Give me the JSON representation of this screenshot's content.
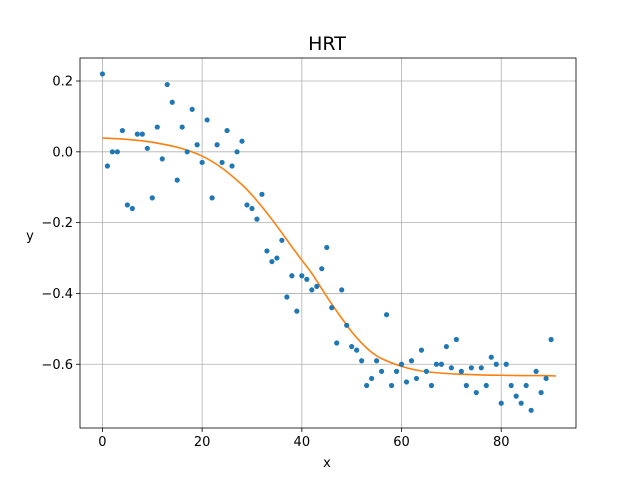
{
  "chart_data": {
    "type": "scatter",
    "title": "HRT",
    "xlabel": "x",
    "ylabel": "y",
    "xlim": [
      -4.5,
      95
    ],
    "ylim": [
      -0.78,
      0.265
    ],
    "xticks": [
      0,
      20,
      40,
      60,
      80
    ],
    "xtick_labels": [
      "0",
      "20",
      "40",
      "60",
      "80"
    ],
    "yticks": [
      0.2,
      0.0,
      -0.2,
      -0.4,
      -0.6
    ],
    "ytick_labels": [
      "0.2",
      "0.0",
      "−0.2",
      "−0.4",
      "−0.6"
    ],
    "grid": true,
    "colors": {
      "points": "#1f77b4",
      "fit": "#ff7f0e",
      "grid": "#b0b0b0"
    },
    "series": [
      {
        "kind": "points",
        "x": [
          0,
          1,
          2,
          3,
          4,
          5,
          6,
          7,
          8,
          9,
          10,
          11,
          12,
          13,
          14,
          15,
          16,
          17,
          18,
          19,
          20,
          21,
          22,
          23,
          24,
          25,
          26,
          27,
          28,
          29,
          30,
          31,
          32,
          33,
          34,
          35,
          36,
          37,
          38,
          39,
          40,
          41,
          42,
          43,
          44,
          45,
          46,
          47,
          48,
          49,
          50,
          51,
          52,
          53,
          54,
          55,
          56,
          57,
          58,
          59,
          60,
          61,
          62,
          63,
          64,
          65,
          66,
          67,
          68,
          69,
          70,
          71,
          72,
          73,
          74,
          75,
          76,
          77,
          78,
          79,
          80,
          81,
          82,
          83,
          84,
          85,
          86,
          87,
          88,
          89,
          90
        ],
        "y": [
          0.22,
          -0.04,
          0.0,
          0.0,
          0.06,
          -0.15,
          -0.16,
          0.05,
          0.05,
          0.01,
          -0.13,
          0.07,
          -0.02,
          0.19,
          0.14,
          -0.08,
          0.07,
          0.0,
          0.12,
          0.02,
          -0.03,
          0.09,
          -0.13,
          0.02,
          -0.03,
          0.06,
          -0.04,
          0.0,
          0.03,
          -0.15,
          -0.16,
          -0.19,
          -0.12,
          -0.28,
          -0.31,
          -0.3,
          -0.25,
          -0.41,
          -0.35,
          -0.45,
          -0.35,
          -0.36,
          -0.39,
          -0.38,
          -0.33,
          -0.27,
          -0.44,
          -0.54,
          -0.39,
          -0.49,
          -0.55,
          -0.56,
          -0.59,
          -0.66,
          -0.64,
          -0.59,
          -0.62,
          -0.46,
          -0.66,
          -0.62,
          -0.6,
          -0.65,
          -0.59,
          -0.64,
          -0.56,
          -0.62,
          -0.66,
          -0.6,
          -0.6,
          -0.55,
          -0.61,
          -0.53,
          -0.62,
          -0.66,
          -0.61,
          -0.68,
          -0.61,
          -0.66,
          -0.58,
          -0.6,
          -0.71,
          -0.6,
          -0.66,
          -0.69,
          -0.71,
          -0.66,
          -0.73,
          -0.62,
          -0.68,
          -0.64,
          -0.53
        ]
      },
      {
        "kind": "line",
        "x": [
          0,
          4,
          8,
          12,
          16,
          20,
          24,
          28,
          30,
          32,
          34,
          36,
          38,
          40,
          42,
          44,
          46,
          48,
          50,
          52,
          54,
          56,
          60,
          64,
          68,
          72,
          76,
          80,
          84,
          88,
          91
        ],
        "y": [
          0.039,
          0.036,
          0.031,
          0.022,
          0.009,
          -0.012,
          -0.046,
          -0.093,
          -0.122,
          -0.155,
          -0.191,
          -0.229,
          -0.268,
          -0.306,
          -0.343,
          -0.387,
          -0.43,
          -0.47,
          -0.508,
          -0.54,
          -0.566,
          -0.584,
          -0.606,
          -0.619,
          -0.625,
          -0.628,
          -0.63,
          -0.631,
          -0.632,
          -0.632,
          -0.633
        ]
      }
    ]
  }
}
